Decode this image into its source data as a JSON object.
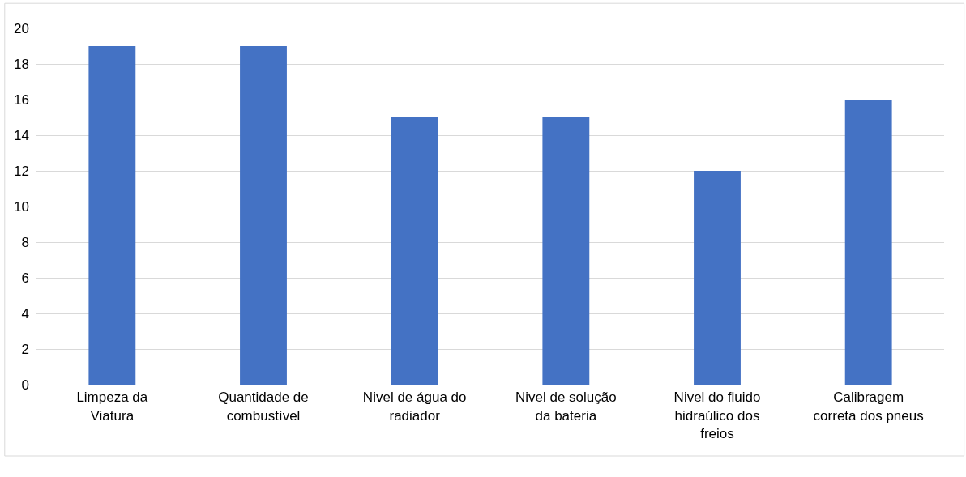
{
  "chart_data": {
    "type": "bar",
    "categories": [
      "Limpeza da Viatura",
      "Quantidade de combustível",
      "Nivel de água do radiador",
      "Nivel de solução da bateria",
      "Nivel do fluido hidraúlico dos freios",
      "Calibragem correta dos pneus"
    ],
    "values": [
      19,
      19,
      15,
      15,
      12,
      16
    ],
    "color": "#4472c4",
    "ylim": [
      0,
      20
    ],
    "yticks": [
      0,
      2,
      4,
      6,
      8,
      10,
      12,
      14,
      16,
      18,
      20
    ],
    "grid": "y"
  }
}
